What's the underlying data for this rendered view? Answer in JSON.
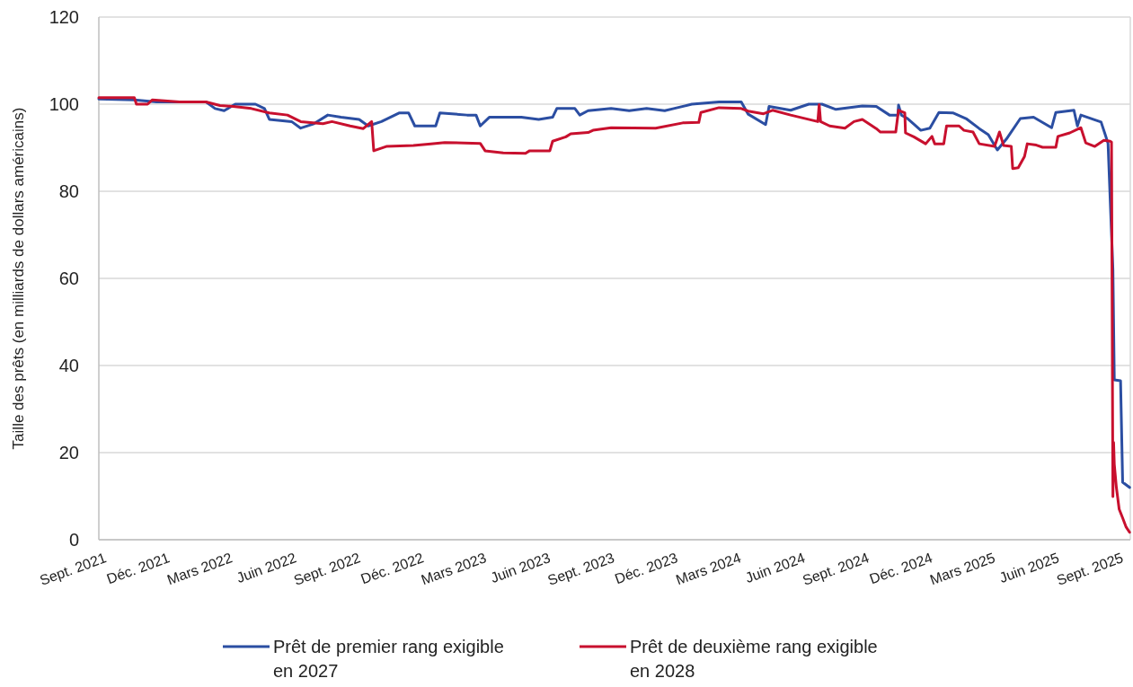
{
  "chart_data": {
    "type": "line",
    "ylabel": "Taille des prêts (en milliards de dollars américains)",
    "xlim": [
      "2021-08-30",
      "2025-09-20"
    ],
    "ylim": [
      0,
      120
    ],
    "yticks": [
      0,
      20,
      40,
      60,
      80,
      100,
      120
    ],
    "xticks": [
      {
        "value": "2021-09-01",
        "label": "Sept. 2021"
      },
      {
        "value": "2021-12-01",
        "label": "Déc. 2021"
      },
      {
        "value": "2022-03-01",
        "label": "Mars 2022"
      },
      {
        "value": "2022-06-01",
        "label": "Juin 2022"
      },
      {
        "value": "2022-09-01",
        "label": "Sept. 2022"
      },
      {
        "value": "2022-12-01",
        "label": "Déc. 2022"
      },
      {
        "value": "2023-03-01",
        "label": "Mars 2023"
      },
      {
        "value": "2023-06-01",
        "label": "Juin 2023"
      },
      {
        "value": "2023-09-01",
        "label": "Sept. 2023"
      },
      {
        "value": "2023-12-01",
        "label": "Déc. 2023"
      },
      {
        "value": "2024-03-01",
        "label": "Mars 2024"
      },
      {
        "value": "2024-06-01",
        "label": "Juin 2024"
      },
      {
        "value": "2024-09-01",
        "label": "Sept. 2024"
      },
      {
        "value": "2024-12-01",
        "label": "Déc. 2024"
      },
      {
        "value": "2025-03-01",
        "label": "Mars 2025"
      },
      {
        "value": "2025-06-01",
        "label": "Juin 2025"
      },
      {
        "value": "2025-09-01",
        "label": "Sept. 2025"
      }
    ],
    "grid": "y",
    "legend": "bottom",
    "marker": "none",
    "line_style": "solid",
    "series": [
      {
        "name": "Prêt de premier rang exigible en 2027",
        "color": "#2b4ea2",
        "x": [
          "2021-08-30",
          "2021-10-20",
          "2021-11-21",
          "2022-01-31",
          "2022-02-13",
          "2022-02-26",
          "2022-03-14",
          "2022-04-12",
          "2022-04-25",
          "2022-05-02",
          "2022-06-03",
          "2022-06-16",
          "2022-07-05",
          "2022-07-25",
          "2022-08-13",
          "2022-09-08",
          "2022-09-21",
          "2022-10-10",
          "2022-11-05",
          "2022-11-18",
          "2022-11-27",
          "2022-12-27",
          "2023-01-02",
          "2023-02-10",
          "2023-02-23",
          "2023-03-01",
          "2023-03-14",
          "2023-04-29",
          "2023-05-24",
          "2023-06-13",
          "2023-06-19",
          "2023-07-15",
          "2023-07-22",
          "2023-08-03",
          "2023-09-05",
          "2023-10-01",
          "2023-10-26",
          "2023-11-21",
          "2023-12-04",
          "2023-12-30",
          "2024-02-07",
          "2024-03-10",
          "2024-03-20",
          "2024-04-14",
          "2024-04-19",
          "2024-05-20",
          "2024-06-15",
          "2024-07-04",
          "2024-07-24",
          "2024-08-31",
          "2024-09-20",
          "2024-10-09",
          "2024-10-21",
          "2024-10-22",
          "2024-10-26",
          "2024-11-04",
          "2024-11-23",
          "2024-12-06",
          "2024-12-19",
          "2025-01-08",
          "2025-01-27",
          "2025-02-15",
          "2025-02-28",
          "2025-03-13",
          "2025-03-26",
          "2025-04-15",
          "2025-05-04",
          "2025-05-30",
          "2025-06-05",
          "2025-07-01",
          "2025-07-06",
          "2025-07-11",
          "2025-08-09",
          "2025-08-15",
          "2025-08-19",
          "2025-08-26",
          "2025-08-28",
          "2025-09-06",
          "2025-09-09",
          "2025-09-19"
        ],
        "values": [
          101.2,
          101,
          100.5,
          100.5,
          99,
          98.5,
          100,
          100,
          99,
          96.5,
          96,
          94.5,
          95.5,
          97.5,
          97,
          96.5,
          95,
          96,
          98,
          98,
          95,
          95,
          98,
          97.5,
          97.5,
          95,
          97,
          97,
          96.5,
          97,
          99,
          99,
          97.5,
          98.5,
          99,
          98.5,
          99,
          98.5,
          99,
          100,
          100.5,
          100.5,
          97.7,
          95.3,
          99.5,
          98.6,
          100,
          100,
          98.8,
          99.6,
          99.5,
          97.5,
          97.5,
          99.8,
          97.5,
          96.7,
          94,
          94.5,
          98.1,
          98,
          96.7,
          94.4,
          93,
          89.5,
          92,
          96.7,
          97,
          94.6,
          98.1,
          98.6,
          95,
          97.5,
          95.9,
          93,
          91,
          62,
          36.7,
          36.5,
          13.2,
          12
        ]
      },
      {
        "name": "Prêt de deuxième rang exigible en 2028",
        "color": "#c8102e",
        "x": [
          "2021-08-30",
          "2021-10-20",
          "2021-10-23",
          "2021-11-08",
          "2021-11-15",
          "2021-12-24",
          "2022-01-31",
          "2022-02-20",
          "2022-03-11",
          "2022-04-06",
          "2022-05-02",
          "2022-05-28",
          "2022-06-16",
          "2022-07-18",
          "2022-07-31",
          "2022-08-26",
          "2022-09-14",
          "2022-09-26",
          "2022-09-29",
          "2022-10-17",
          "2022-11-25",
          "2022-12-20",
          "2023-01-09",
          "2023-03-01",
          "2023-03-08",
          "2023-04-03",
          "2023-05-05",
          "2023-05-11",
          "2023-06-09",
          "2023-06-13",
          "2023-07-02",
          "2023-07-09",
          "2023-08-03",
          "2023-08-10",
          "2023-09-05",
          "2023-11-08",
          "2023-12-17",
          "2024-01-09",
          "2024-01-12",
          "2024-02-07",
          "2024-03-10",
          "2024-03-20",
          "2024-04-11",
          "2024-04-24",
          "2024-05-20",
          "2024-06-28",
          "2024-06-30",
          "2024-07-02",
          "2024-07-15",
          "2024-08-06",
          "2024-08-19",
          "2024-08-31",
          "2024-09-20",
          "2024-09-26",
          "2024-10-18",
          "2024-10-22",
          "2024-10-31",
          "2024-11-01",
          "2024-11-13",
          "2024-11-30",
          "2024-12-09",
          "2024-12-13",
          "2024-12-26",
          "2024-12-30",
          "2025-01-17",
          "2025-01-24",
          "2025-02-06",
          "2025-02-15",
          "2025-03-09",
          "2025-03-16",
          "2025-03-22",
          "2025-04-02",
          "2025-04-04",
          "2025-04-12",
          "2025-04-21",
          "2025-04-25",
          "2025-05-08",
          "2025-05-17",
          "2025-06-05",
          "2025-06-08",
          "2025-06-25",
          "2025-07-11",
          "2025-07-18",
          "2025-07-31",
          "2025-08-13",
          "2025-08-22",
          "2025-08-24",
          "2025-08-26",
          "2025-08-27",
          "2025-08-28",
          "2025-08-31",
          "2025-09-04",
          "2025-09-09",
          "2025-09-14",
          "2025-09-19"
        ],
        "values": [
          101.5,
          101.5,
          100,
          100,
          101,
          100.5,
          100.5,
          99.7,
          99.5,
          99,
          98,
          97.5,
          96,
          95.5,
          96,
          95,
          94.4,
          96,
          89.3,
          90.3,
          90.5,
          90.9,
          91.2,
          91,
          89.3,
          88.8,
          88.7,
          89.3,
          89.3,
          91.5,
          92.5,
          93.2,
          93.5,
          94,
          94.6,
          94.5,
          95.7,
          95.8,
          98.1,
          99.2,
          99,
          98.4,
          97.8,
          98.6,
          97.5,
          96,
          99.9,
          96,
          95,
          94.5,
          96,
          96.5,
          94.4,
          93.6,
          93.6,
          98.6,
          98,
          93.4,
          92.5,
          90.9,
          92.6,
          90.9,
          90.9,
          95,
          95,
          94,
          93.6,
          90.9,
          90.3,
          93.6,
          90.5,
          90.3,
          85.2,
          85.4,
          88,
          90.9,
          90.6,
          90.1,
          90.1,
          92.6,
          93.4,
          94.6,
          91.1,
          90.3,
          91.7,
          91.5,
          91.3,
          9.9,
          22.3,
          17.3,
          12,
          7,
          5,
          2.9,
          1.7
        ]
      }
    ]
  }
}
